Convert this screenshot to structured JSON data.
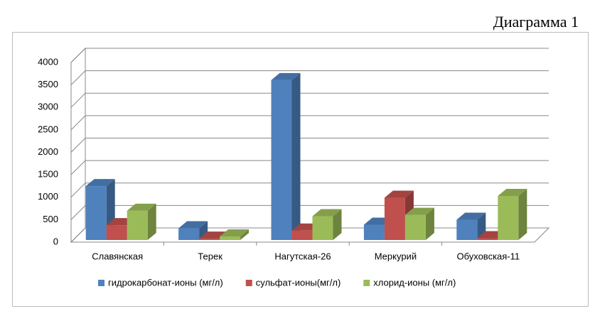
{
  "chart_data": {
    "type": "bar",
    "title": "Диаграмма 1",
    "categories": [
      "Славянская",
      "Терек",
      "Нагутская-26",
      "Меркурий",
      "Обуховская-11"
    ],
    "series": [
      {
        "name": "гидрокарбонат-ионы (мг/л)",
        "color": "#4f81bd",
        "values": [
          1200,
          260,
          3560,
          340,
          450
        ]
      },
      {
        "name": "сульфат-ионы(мг/л)",
        "color": "#c0504d",
        "values": [
          330,
          30,
          210,
          940,
          40
        ]
      },
      {
        "name": "хлорид-ионы (мг/л)",
        "color": "#9bbb59",
        "values": [
          650,
          80,
          530,
          560,
          980
        ]
      }
    ],
    "ylim": [
      0,
      4000
    ],
    "yticks": [
      0,
      500,
      1000,
      1500,
      2000,
      2500,
      3000,
      3500,
      4000
    ],
    "grid": true,
    "legend": "bottom"
  }
}
